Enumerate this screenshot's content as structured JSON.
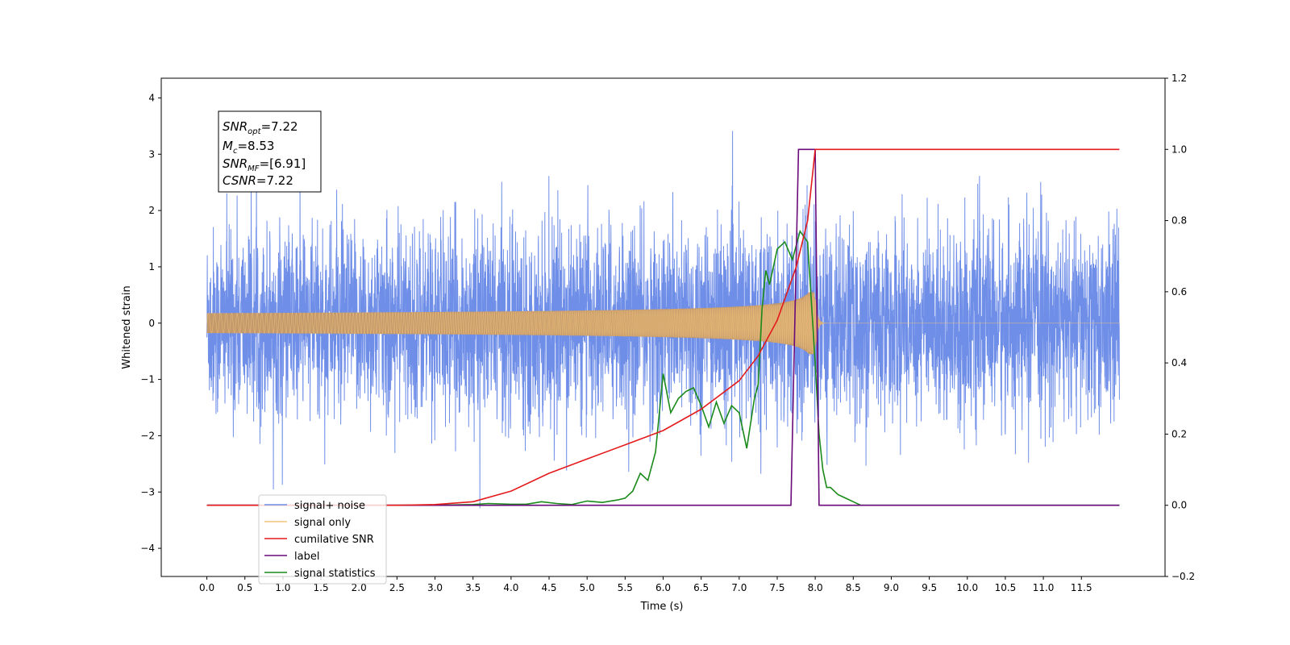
{
  "chart_data": {
    "type": "line",
    "xlabel": "Time (s)",
    "ylabel": "Whitened strain",
    "x_ticks": [
      0.0,
      0.5,
      1.0,
      1.5,
      2.0,
      2.5,
      3.0,
      3.5,
      4.0,
      4.5,
      5.0,
      5.5,
      6.0,
      6.5,
      7.0,
      7.5,
      8.0,
      8.5,
      9.0,
      9.5,
      10.0,
      10.5,
      11.0,
      11.5
    ],
    "x_tick_labels": [
      "0.0",
      "0.5",
      "1.0",
      "1.5",
      "2.0",
      "2.5",
      "3.0",
      "3.5",
      "4.0",
      "4.5",
      "5.0",
      "5.5",
      "6.0",
      "6.5",
      "7.0",
      "7.5",
      "8.0",
      "8.5",
      "9.0",
      "9.5",
      "10.0",
      "10.5",
      "11.0",
      "11.5"
    ],
    "xlim": [
      -0.6,
      12.6
    ],
    "ylim_left": [
      -4.5,
      4.35
    ],
    "left_ticks": [
      -4,
      -3,
      -2,
      -1,
      0,
      1,
      2,
      3,
      4
    ],
    "left_tick_labels": [
      "−4",
      "−3",
      "−2",
      "−1",
      "0",
      "1",
      "2",
      "3",
      "4"
    ],
    "ylim_right": [
      -0.2,
      1.2
    ],
    "right_ticks": [
      -0.2,
      0.0,
      0.2,
      0.4,
      0.6,
      0.8,
      1.0,
      1.2
    ],
    "right_tick_labels": [
      "−0.2",
      "0.0",
      "0.2",
      "0.4",
      "0.6",
      "0.8",
      "1.0",
      "1.2"
    ],
    "grid": false,
    "legend_placement": "lower-left",
    "colors": {
      "noise": "#6f8ee8",
      "signal": "#f5c47a",
      "signal_fill": "#c49a6c",
      "csnr": "#e41a1c",
      "label": "#6a0a7a",
      "stat": "#1a8a1a"
    },
    "info_box": {
      "snr_opt": "7.22",
      "mc": "8.53",
      "snr_mf": "[6.91]",
      "csnr": "7.22"
    },
    "series": [
      {
        "name": "signal+ noise",
        "axis": "left",
        "envelope": {
          "duration": 12.0,
          "typical_abs": 2.2,
          "peak_max": 3.94,
          "peak_min": -3.78
        }
      },
      {
        "name": "signal only",
        "axis": "left",
        "chirp": {
          "start": 0.0,
          "merger": 8.0,
          "end": 12.0,
          "peak_amplitude": 0.55
        }
      },
      {
        "name": "cumilative SNR",
        "axis": "right",
        "x": [
          0.0,
          2.5,
          3.0,
          3.5,
          4.0,
          4.5,
          5.0,
          5.5,
          6.0,
          6.5,
          7.0,
          7.25,
          7.5,
          7.75,
          7.9,
          8.0,
          9.0,
          10.0,
          11.0,
          12.0
        ],
        "y": [
          0.0,
          0.0,
          0.002,
          0.01,
          0.04,
          0.09,
          0.13,
          0.17,
          0.21,
          0.27,
          0.35,
          0.42,
          0.52,
          0.67,
          0.8,
          1.0,
          1.0,
          1.0,
          1.0,
          1.0
        ]
      },
      {
        "name": "label",
        "axis": "right",
        "x": [
          0.0,
          7.68,
          7.78,
          8.0,
          8.05,
          12.0
        ],
        "y": [
          0.0,
          0.0,
          1.0,
          1.0,
          0.0,
          0.0
        ]
      },
      {
        "name": "signal statistics",
        "axis": "right",
        "x": [
          0.0,
          3.0,
          3.5,
          3.7,
          4.0,
          4.2,
          4.4,
          4.6,
          4.8,
          5.0,
          5.2,
          5.4,
          5.5,
          5.6,
          5.7,
          5.8,
          5.9,
          6.0,
          6.1,
          6.2,
          6.3,
          6.4,
          6.5,
          6.6,
          6.7,
          6.8,
          6.9,
          7.0,
          7.1,
          7.2,
          7.25,
          7.3,
          7.35,
          7.4,
          7.5,
          7.6,
          7.7,
          7.8,
          7.9,
          8.0,
          8.05,
          8.1,
          8.15,
          8.2,
          8.3,
          8.4,
          8.5,
          8.6,
          9.0,
          12.0
        ],
        "y": [
          0.0,
          0.0,
          0.002,
          0.005,
          0.003,
          0.003,
          0.01,
          0.005,
          0.002,
          0.012,
          0.008,
          0.015,
          0.02,
          0.04,
          0.09,
          0.07,
          0.15,
          0.37,
          0.26,
          0.3,
          0.32,
          0.33,
          0.28,
          0.22,
          0.29,
          0.23,
          0.28,
          0.26,
          0.16,
          0.3,
          0.34,
          0.55,
          0.66,
          0.62,
          0.72,
          0.74,
          0.69,
          0.77,
          0.74,
          0.4,
          0.2,
          0.1,
          0.05,
          0.05,
          0.03,
          0.02,
          0.01,
          0.0,
          0.0,
          0.0
        ]
      }
    ]
  }
}
